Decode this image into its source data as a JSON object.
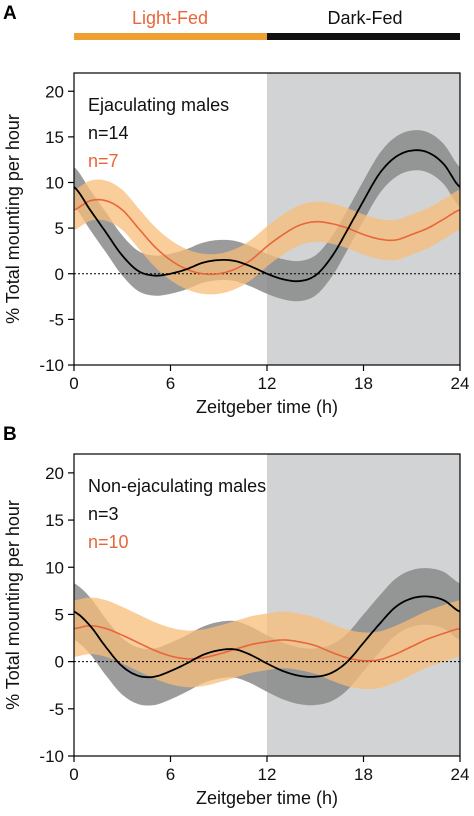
{
  "colors": {
    "light_accent": "#f0a030",
    "light_text": "#e8663a",
    "dark_bar": "#111111",
    "dark_shade": "#d2d3d5",
    "black_band": "#8a8a8a",
    "orange_band": "#f7be78",
    "orange_line": "#e8663a",
    "black_line": "#000000"
  },
  "header": {
    "light_label": "Light-Fed",
    "dark_label": "Dark-Fed"
  },
  "chart_data": [
    {
      "type": "line",
      "panel_label": "A",
      "legend_title": "Ejaculating males",
      "ylabel": "% Total mounting per hour",
      "xlabel": "Zeitgeber time (h)",
      "ylim": [
        -10,
        22
      ],
      "xlim": [
        0,
        24
      ],
      "x_ticks": [
        "0",
        "6",
        "12",
        "18",
        "24"
      ],
      "y_ticks": [
        "-10",
        "-5",
        "0",
        "5",
        "10",
        "15",
        "20"
      ],
      "dark_phase": [
        12,
        24
      ],
      "series": [
        {
          "name": "n=14",
          "color": "black",
          "x": [
            0,
            1,
            2,
            3,
            4,
            5,
            6,
            7,
            8,
            9,
            10,
            11,
            12,
            13,
            14,
            15,
            16,
            17,
            18,
            19,
            20,
            21,
            22,
            23,
            24
          ],
          "y": [
            9.5,
            7.0,
            4.5,
            2.0,
            0.3,
            -0.2,
            0.0,
            0.5,
            1.2,
            1.5,
            1.4,
            0.8,
            0.0,
            -0.6,
            -0.8,
            -0.2,
            1.8,
            4.8,
            8.0,
            11.0,
            12.8,
            13.5,
            13.3,
            12.0,
            9.5
          ],
          "band": 2.2
        },
        {
          "name": "n=7",
          "color": "orange",
          "x": [
            0,
            1,
            2,
            3,
            4,
            5,
            6,
            7,
            8,
            9,
            10,
            11,
            12,
            13,
            14,
            15,
            16,
            17,
            18,
            19,
            20,
            21,
            22,
            23,
            24
          ],
          "y": [
            7.0,
            8.0,
            8.0,
            7.0,
            5.0,
            3.0,
            1.5,
            0.5,
            0.0,
            0.0,
            0.5,
            1.5,
            3.0,
            4.3,
            5.3,
            5.7,
            5.5,
            5.0,
            4.3,
            3.8,
            3.7,
            4.3,
            5.0,
            6.0,
            7.0
          ],
          "band": 2.2
        }
      ]
    },
    {
      "type": "line",
      "panel_label": "B",
      "legend_title": "Non-ejaculating males",
      "ylabel": "% Total mounting per hour",
      "xlabel": "Zeitgeber time (h)",
      "ylim": [
        -10,
        22
      ],
      "xlim": [
        0,
        24
      ],
      "x_ticks": [
        "0",
        "6",
        "12",
        "18",
        "24"
      ],
      "y_ticks": [
        "-10",
        "-5",
        "0",
        "5",
        "10",
        "15",
        "20"
      ],
      "dark_phase": [
        12,
        24
      ],
      "series": [
        {
          "name": "n=3",
          "color": "black",
          "x": [
            0,
            1,
            2,
            3,
            4,
            5,
            6,
            7,
            8,
            9,
            10,
            11,
            12,
            13,
            14,
            15,
            16,
            17,
            18,
            19,
            20,
            21,
            22,
            23,
            24
          ],
          "y": [
            5.3,
            3.8,
            1.5,
            -0.5,
            -1.5,
            -1.6,
            -1.0,
            -0.2,
            0.7,
            1.2,
            1.3,
            0.7,
            -0.2,
            -1.0,
            -1.5,
            -1.6,
            -1.2,
            0.0,
            2.0,
            4.0,
            5.8,
            6.7,
            6.9,
            6.5,
            5.3
          ],
          "band": 3.0
        },
        {
          "name": "n=10",
          "color": "orange",
          "x": [
            0,
            1,
            2,
            3,
            4,
            5,
            6,
            7,
            8,
            9,
            10,
            11,
            12,
            13,
            14,
            15,
            16,
            17,
            18,
            19,
            20,
            21,
            22,
            23,
            24
          ],
          "y": [
            3.5,
            3.8,
            3.5,
            2.8,
            2.0,
            1.2,
            0.6,
            0.3,
            0.4,
            0.8,
            1.3,
            1.8,
            2.1,
            2.3,
            2.1,
            1.7,
            1.0,
            0.4,
            0.1,
            0.2,
            0.8,
            1.6,
            2.4,
            3.0,
            3.5
          ],
          "band": 3.0
        }
      ]
    }
  ]
}
